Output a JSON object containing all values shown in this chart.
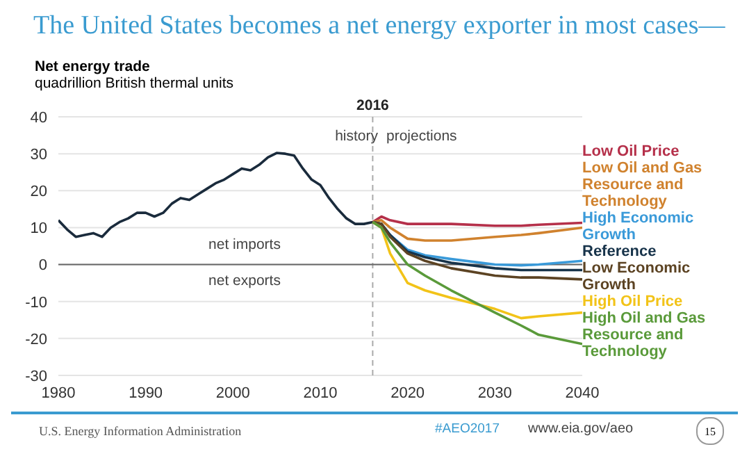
{
  "chart_data": {
    "type": "line",
    "title": "The United States becomes a net energy exporter in most cases—",
    "ylabel": "Net energy trade",
    "subtitle": "quadrillion British thermal units",
    "xlim": [
      1980,
      2040
    ],
    "xticks": [
      1980,
      1990,
      2000,
      2010,
      2020,
      2030,
      2040
    ],
    "ylim": [
      -30,
      40
    ],
    "yticks": [
      -30,
      -20,
      -10,
      0,
      10,
      20,
      30,
      40
    ],
    "grid": "y",
    "legend": "right",
    "marker": "none",
    "line_style": "solid",
    "ref_lines": [
      {
        "axis": "x",
        "value": 2016,
        "label": "2016",
        "color": "#aaaaaa",
        "line_style": "dashed"
      },
      {
        "axis": "y",
        "value": 0,
        "label": null,
        "color": "#666666",
        "line_style": "solid"
      }
    ],
    "annotations": [
      "history",
      "projections",
      "net imports",
      "net exports",
      "U.S. Energy Information Administration",
      "#AEO2017",
      "www.eia.gov/aeo",
      "15"
    ],
    "series": [
      {
        "color": "#1a2b3c",
        "x": [
          1980,
          1981,
          1982,
          1983,
          1984,
          1985,
          1986,
          1987,
          1988,
          1989,
          1990,
          1991,
          1992,
          1993,
          1994,
          1995,
          1996,
          1997,
          1998,
          1999,
          2000,
          2001,
          2002,
          2003,
          2004,
          2005,
          2006,
          2007,
          2008,
          2009,
          2010,
          2011,
          2012,
          2013,
          2014,
          2015,
          2016
        ],
        "values": [
          12,
          9.5,
          7.5,
          8,
          8.5,
          7.5,
          10,
          11.5,
          12.5,
          14,
          14,
          13,
          14,
          16.5,
          18,
          17.5,
          19,
          20.5,
          22,
          23,
          24.5,
          26,
          25.5,
          27,
          29,
          30.2,
          30,
          29.5,
          26,
          23,
          21.5,
          18,
          15,
          12.5,
          11,
          11,
          11.5
        ]
      },
      {
        "name": "Low Oil Price",
        "color": "#b5304a",
        "x": [
          2016,
          2017,
          2018,
          2020,
          2022,
          2025,
          2030,
          2033,
          2035,
          2040
        ],
        "values": [
          11.5,
          13,
          12,
          11,
          11,
          11,
          10.5,
          10.5,
          10.8,
          11.3
        ]
      },
      {
        "name": "Low Oil and Gas Resource and Technology",
        "color": "#d0822e",
        "x": [
          2016,
          2017,
          2018,
          2020,
          2022,
          2025,
          2030,
          2033,
          2035,
          2040
        ],
        "values": [
          11.5,
          12,
          10,
          7,
          6.5,
          6.5,
          7.5,
          8,
          8.5,
          10
        ]
      },
      {
        "name": "High Economic Growth",
        "color": "#3a9ad9",
        "x": [
          2016,
          2017,
          2018,
          2020,
          2022,
          2025,
          2030,
          2033,
          2035,
          2040
        ],
        "values": [
          11.5,
          11,
          8,
          4,
          2.5,
          1.5,
          0,
          -0.2,
          0,
          1
        ]
      },
      {
        "name": "Reference",
        "color": "#17334a",
        "x": [
          2016,
          2017,
          2018,
          2020,
          2022,
          2025,
          2030,
          2033,
          2035,
          2040
        ],
        "values": [
          11.5,
          11,
          8,
          3.5,
          2,
          0.5,
          -1,
          -1.5,
          -1.5,
          -1.5
        ]
      },
      {
        "name": "Low Economic Growth",
        "color": "#5c4323",
        "x": [
          2016,
          2017,
          2018,
          2020,
          2022,
          2025,
          2030,
          2033,
          2035,
          2040
        ],
        "values": [
          11.5,
          11,
          7.5,
          3,
          1,
          -1,
          -3,
          -3.5,
          -3.5,
          -4
        ]
      },
      {
        "name": "High Oil Price",
        "color": "#f2c318",
        "x": [
          2016,
          2017,
          2018,
          2020,
          2022,
          2025,
          2030,
          2033,
          2035,
          2040
        ],
        "values": [
          11.5,
          10,
          3,
          -5,
          -7,
          -9,
          -12,
          -14.5,
          -14,
          -13
        ]
      },
      {
        "name": "High Oil and Gas Resource and Technology",
        "color": "#5a9a3a",
        "x": [
          2016,
          2017,
          2018,
          2020,
          2022,
          2025,
          2030,
          2033,
          2035,
          2040
        ],
        "values": [
          11.5,
          10,
          6,
          0,
          -3,
          -7,
          -13,
          -16.5,
          -19,
          -21.5
        ]
      }
    ]
  }
}
